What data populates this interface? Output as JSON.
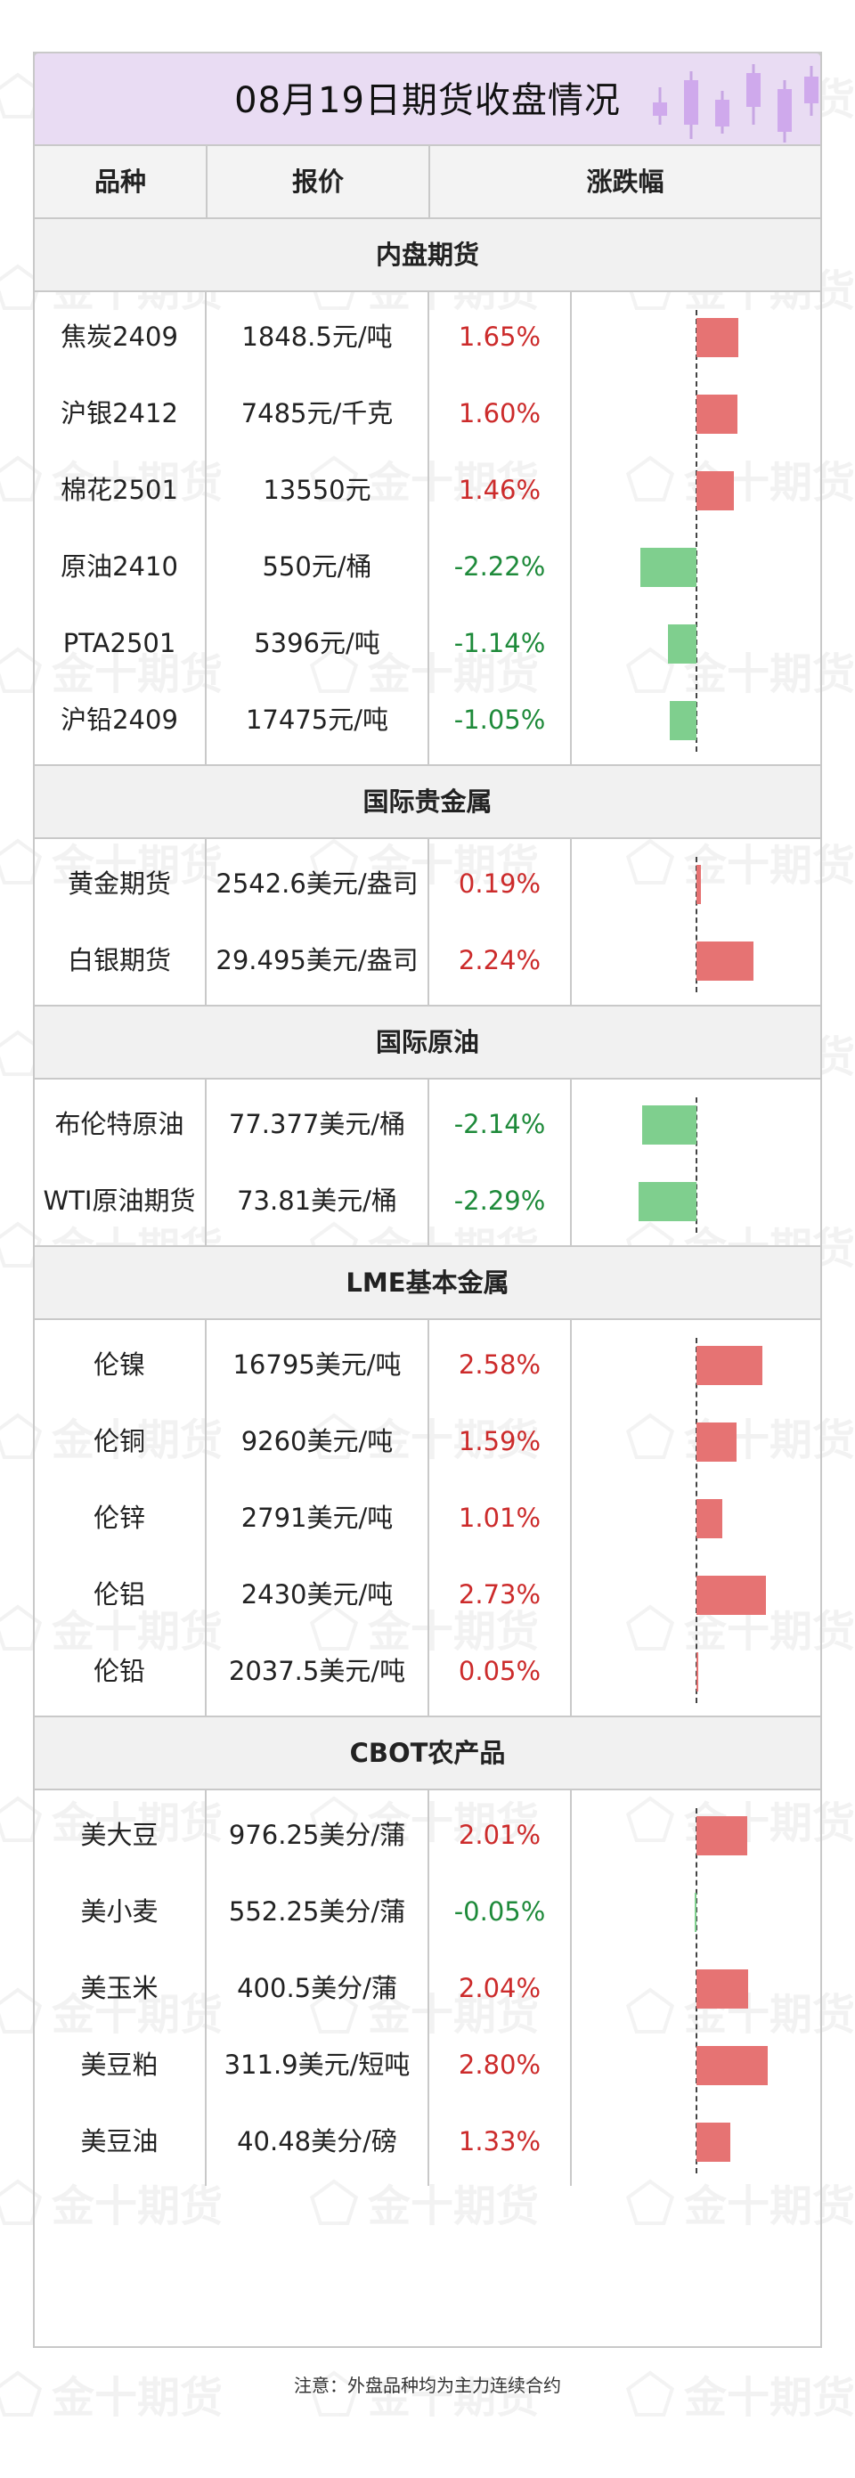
{
  "title": "08月19日期货收盘情况",
  "headers": {
    "name": "品种",
    "price": "报价",
    "change": "涨跌幅"
  },
  "footnote": "注意：外盘品种均为主力连续合约",
  "watermark": "金十期货",
  "colors": {
    "up": "#cc2b2b",
    "down": "#1e8a3a",
    "bar_up": "#e67373",
    "bar_down": "#7fcf8e",
    "title_bg": "#e9dcf3"
  },
  "chart_data": {
    "type": "bar",
    "orientation": "horizontal",
    "unit": "%",
    "xlim": [
      -3,
      3
    ],
    "sections": [
      {
        "name": "内盘期货",
        "rows": [
          {
            "name": "焦炭2409",
            "price": "1848.5元/吨",
            "change": 1.65,
            "change_label": "1.65%"
          },
          {
            "name": "沪银2412",
            "price": "7485元/千克",
            "change": 1.6,
            "change_label": "1.60%"
          },
          {
            "name": "棉花2501",
            "price": "13550元",
            "change": 1.46,
            "change_label": "1.46%"
          },
          {
            "name": "原油2410",
            "price": "550元/桶",
            "change": -2.22,
            "change_label": "-2.22%"
          },
          {
            "name": "PTA2501",
            "price": "5396元/吨",
            "change": -1.14,
            "change_label": "-1.14%"
          },
          {
            "name": "沪铅2409",
            "price": "17475元/吨",
            "change": -1.05,
            "change_label": "-1.05%"
          }
        ]
      },
      {
        "name": "国际贵金属",
        "rows": [
          {
            "name": "黄金期货",
            "price": "2542.6美元/盎司",
            "change": 0.19,
            "change_label": "0.19%"
          },
          {
            "name": "白银期货",
            "price": "29.495美元/盎司",
            "change": 2.24,
            "change_label": "2.24%"
          }
        ]
      },
      {
        "name": "国际原油",
        "rows": [
          {
            "name": "布伦特原油",
            "price": "77.377美元/桶",
            "change": -2.14,
            "change_label": "-2.14%"
          },
          {
            "name": "WTI原油期货",
            "price": "73.81美元/桶",
            "change": -2.29,
            "change_label": "-2.29%"
          }
        ]
      },
      {
        "name": "LME基本金属",
        "rows": [
          {
            "name": "伦镍",
            "price": "16795美元/吨",
            "change": 2.58,
            "change_label": "2.58%"
          },
          {
            "name": "伦铜",
            "price": "9260美元/吨",
            "change": 1.59,
            "change_label": "1.59%"
          },
          {
            "name": "伦锌",
            "price": "2791美元/吨",
            "change": 1.01,
            "change_label": "1.01%"
          },
          {
            "name": "伦铝",
            "price": "2430美元/吨",
            "change": 2.73,
            "change_label": "2.73%"
          },
          {
            "name": "伦铅",
            "price": "2037.5美元/吨",
            "change": 0.05,
            "change_label": "0.05%"
          }
        ]
      },
      {
        "name": "CBOT农产品",
        "rows": [
          {
            "name": "美大豆",
            "price": "976.25美分/蒲",
            "change": 2.01,
            "change_label": "2.01%"
          },
          {
            "name": "美小麦",
            "price": "552.25美分/蒲",
            "change": -0.05,
            "change_label": "-0.05%"
          },
          {
            "name": "美玉米",
            "price": "400.5美分/蒲",
            "change": 2.04,
            "change_label": "2.04%"
          },
          {
            "name": "美豆粕",
            "price": "311.9美元/短吨",
            "change": 2.8,
            "change_label": "2.80%"
          },
          {
            "name": "美豆油",
            "price": "40.48美分/磅",
            "change": 1.33,
            "change_label": "1.33%"
          }
        ]
      }
    ]
  }
}
